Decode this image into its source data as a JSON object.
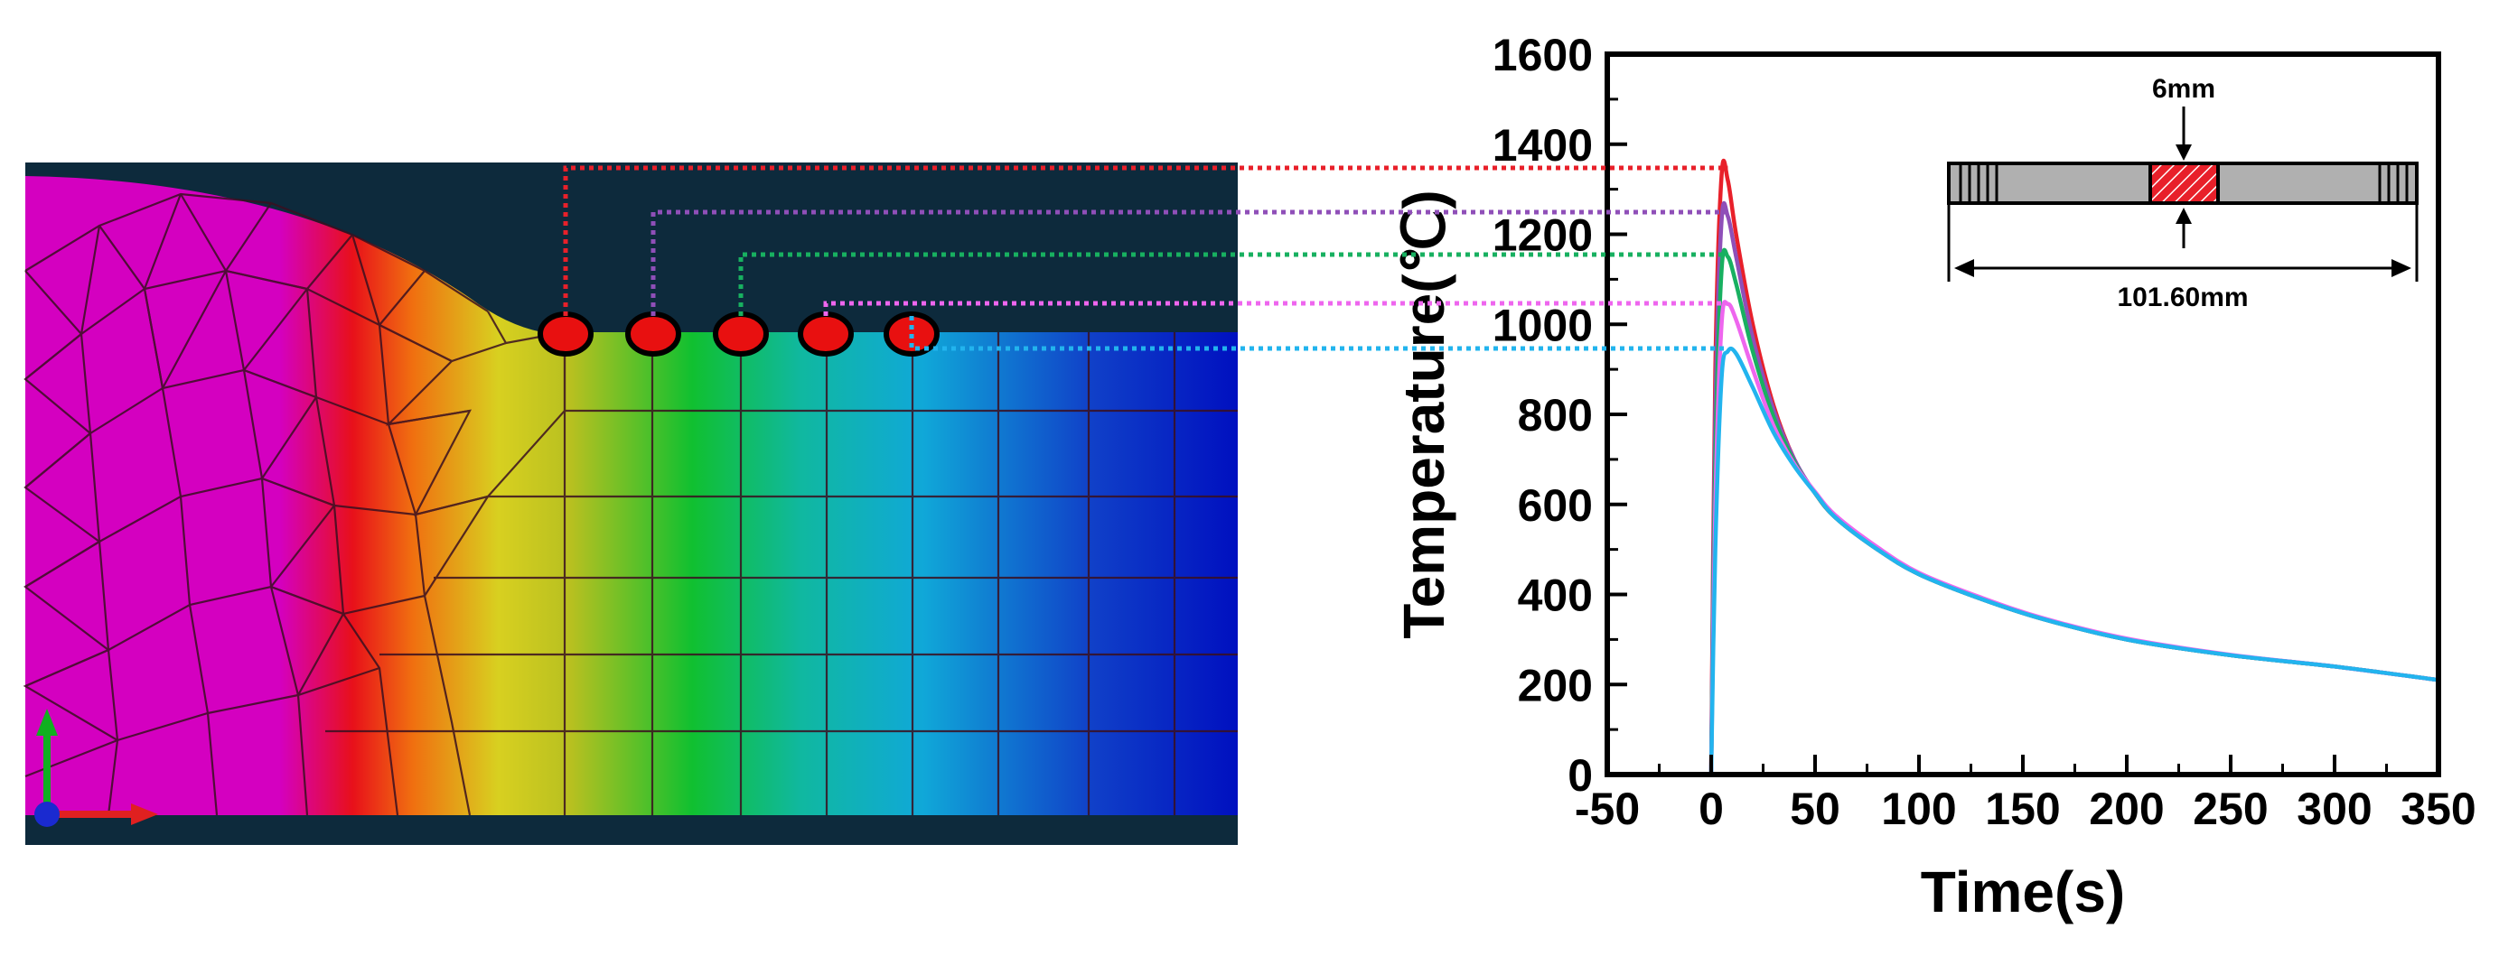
{
  "fem_panel": {
    "probe_colors": [
      "#e8202a",
      "#8f4fb8",
      "#18b060",
      "#ee66ee",
      "#22b4ee"
    ]
  },
  "chart_data": {
    "type": "line",
    "xlabel": "Time(s)",
    "ylabel": "Temperature(℃)",
    "xlim": [
      -50,
      350
    ],
    "ylim": [
      0,
      1600
    ],
    "xticks": [
      -50,
      0,
      50,
      100,
      150,
      200,
      250,
      300,
      350
    ],
    "yticks": [
      0,
      200,
      400,
      600,
      800,
      1000,
      1200,
      1400,
      1600
    ],
    "grid": false,
    "series": [
      {
        "color": "#e8202a",
        "x": [
          0,
          2,
          5,
          8,
          12,
          20,
          30,
          40,
          50,
          60,
          80,
          100,
          130,
          160,
          200,
          250,
          300,
          350
        ],
        "y": [
          0,
          900,
          1330,
          1320,
          1200,
          1000,
          820,
          700,
          625,
          570,
          500,
          445,
          390,
          345,
          300,
          265,
          240,
          210
        ]
      },
      {
        "color": "#8f4fb8",
        "x": [
          0,
          2,
          5,
          8,
          12,
          20,
          30,
          40,
          50,
          60,
          80,
          100,
          130,
          160,
          200,
          250,
          300,
          350
        ],
        "y": [
          0,
          800,
          1230,
          1240,
          1150,
          970,
          810,
          700,
          625,
          570,
          500,
          445,
          390,
          345,
          300,
          265,
          240,
          210
        ]
      },
      {
        "color": "#18b060",
        "x": [
          0,
          2,
          5,
          8,
          12,
          20,
          30,
          40,
          50,
          60,
          80,
          100,
          130,
          160,
          200,
          250,
          300,
          350
        ],
        "y": [
          0,
          700,
          1120,
          1150,
          1090,
          940,
          795,
          695,
          625,
          570,
          500,
          445,
          390,
          345,
          300,
          265,
          240,
          210
        ]
      },
      {
        "color": "#ee66ee",
        "x": [
          0,
          2,
          5,
          8,
          12,
          20,
          30,
          40,
          50,
          60,
          80,
          100,
          130,
          160,
          200,
          250,
          300,
          350
        ],
        "y": [
          0,
          600,
          1000,
          1045,
          1010,
          900,
          775,
          690,
          628,
          575,
          505,
          448,
          393,
          347,
          302,
          266,
          240,
          210
        ]
      },
      {
        "color": "#22b4ee",
        "x": [
          0,
          2,
          5,
          8,
          12,
          20,
          30,
          40,
          50,
          60,
          80,
          100,
          130,
          160,
          200,
          250,
          300,
          350
        ],
        "y": [
          0,
          500,
          880,
          940,
          935,
          860,
          760,
          685,
          625,
          570,
          500,
          445,
          390,
          345,
          300,
          265,
          240,
          210
        ]
      }
    ],
    "inset": {
      "width_label": "6mm",
      "length_label": "101.60mm"
    }
  }
}
